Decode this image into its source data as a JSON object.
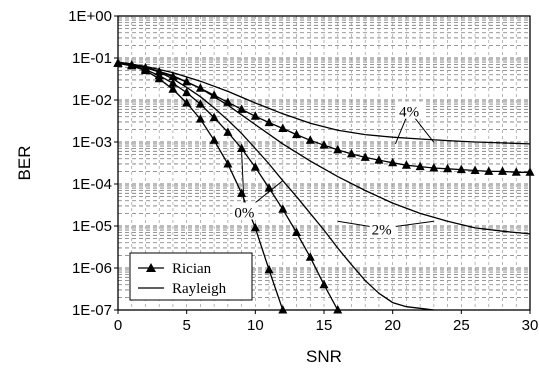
{
  "chart_data": {
    "type": "line",
    "title": "",
    "xlabel": "SNR",
    "ylabel": "BER",
    "xlim": [
      0,
      30
    ],
    "ylim": [
      1e-07,
      1
    ],
    "yscale": "log",
    "grid": true,
    "grid_style": "dashed",
    "legend_position": "bottom-left",
    "xticks": [
      "0",
      "5",
      "10",
      "15",
      "20",
      "25",
      "30"
    ],
    "xtick_values": [
      0,
      5,
      10,
      15,
      20,
      25,
      30
    ],
    "yticks": [
      "1E-07",
      "1E-06",
      "1E-05",
      "1E-04",
      "1E-03",
      "1E-02",
      "1E-01",
      "1E+00"
    ],
    "ytick_values": [
      1e-07,
      1e-06,
      1e-05,
      0.0001,
      0.001,
      0.01,
      0.1,
      1
    ],
    "legend": {
      "rician_label": "Rician",
      "rayleigh_label": "Rayleigh"
    },
    "series": [
      {
        "name": "Rician",
        "group": "rician",
        "marker": "triangle",
        "x": [
          0,
          1,
          2,
          3,
          4,
          5,
          6,
          7,
          8,
          9,
          10,
          11,
          12
        ],
        "y": [
          0.075,
          0.065,
          0.05,
          0.032,
          0.018,
          0.0085,
          0.0035,
          0.0011,
          0.0003,
          6e-05,
          9e-06,
          9e-07,
          1e-07
        ]
      },
      {
        "name": "Rician",
        "group": "rician",
        "marker": "triangle",
        "x": [
          0,
          1,
          2,
          3,
          4,
          5,
          6,
          7,
          8,
          9,
          10,
          11,
          12,
          13,
          14,
          15,
          16
        ],
        "y": [
          0.075,
          0.066,
          0.053,
          0.038,
          0.025,
          0.015,
          0.008,
          0.0038,
          0.0017,
          0.0007,
          0.00025,
          8e-05,
          2.5e-05,
          7e-06,
          1.8e-06,
          4e-07,
          1e-07
        ]
      },
      {
        "name": "Rician",
        "group": "rician",
        "marker": "triangle",
        "x": [
          0,
          1,
          2,
          3,
          4,
          5,
          6,
          7,
          8,
          9,
          10,
          11,
          12,
          13,
          14,
          15,
          16,
          17,
          18,
          19,
          20,
          21,
          22,
          23,
          24,
          25,
          26,
          27,
          28,
          29,
          30
        ],
        "y": [
          0.075,
          0.068,
          0.058,
          0.047,
          0.036,
          0.027,
          0.019,
          0.013,
          0.0088,
          0.006,
          0.0041,
          0.0029,
          0.0021,
          0.0015,
          0.0011,
          0.00084,
          0.00065,
          0.00052,
          0.00043,
          0.00037,
          0.00032,
          0.00028,
          0.00026,
          0.00024,
          0.00023,
          0.00022,
          0.00021,
          0.0002,
          0.0002,
          0.00019,
          0.00019
        ]
      },
      {
        "name": "Rayleigh",
        "group": "rayleigh",
        "marker": "none",
        "x": [
          0,
          1,
          2,
          3,
          4,
          5,
          6,
          7,
          8,
          9,
          10,
          11,
          12,
          13,
          14,
          15,
          16,
          17,
          18,
          19,
          20,
          21,
          22,
          23
        ],
        "y": [
          0.08,
          0.072,
          0.06,
          0.046,
          0.032,
          0.02,
          0.012,
          0.0065,
          0.0033,
          0.0016,
          0.0007,
          0.0003,
          0.00012,
          5e-05,
          2e-05,
          8e-06,
          3e-06,
          1.2e-06,
          5e-07,
          2.5e-07,
          1.5e-07,
          1.2e-07,
          1.1e-07,
          1e-07
        ]
      },
      {
        "name": "Rayleigh",
        "group": "rayleigh",
        "marker": "none",
        "x": [
          0,
          2,
          4,
          6,
          8,
          10,
          12,
          14,
          16,
          18,
          20,
          22,
          24,
          26,
          28,
          30
        ],
        "y": [
          0.08,
          0.06,
          0.038,
          0.019,
          0.0075,
          0.0026,
          0.0009,
          0.00035,
          0.00015,
          7e-05,
          3.5e-05,
          2e-05,
          1.3e-05,
          9e-06,
          7.5e-06,
          6.5e-06
        ]
      },
      {
        "name": "Rayleigh",
        "group": "rayleigh",
        "marker": "none",
        "x": [
          0,
          2,
          4,
          6,
          8,
          10,
          12,
          14,
          16,
          18,
          20,
          22,
          24,
          26,
          28,
          30
        ],
        "y": [
          0.08,
          0.063,
          0.045,
          0.028,
          0.016,
          0.0085,
          0.0047,
          0.0028,
          0.0019,
          0.0015,
          0.0013,
          0.00118,
          0.00108,
          0.001,
          0.00095,
          0.0009
        ]
      }
    ],
    "annotations": [
      {
        "text": "0%",
        "label_x": 9.2,
        "label_y": 1.6e-05,
        "leader_targets": [
          [
            12,
            0.00012
          ],
          [
            9,
            0.0006
          ]
        ]
      },
      {
        "text": "2%",
        "label_x": 19.2,
        "label_y": 6.3e-06,
        "leader_targets": [
          [
            16,
            1.3e-05
          ],
          [
            23,
            1.3e-05
          ]
        ]
      },
      {
        "text": "4%",
        "label_x": 21.2,
        "label_y": 0.004,
        "leader_targets": [
          [
            20.2,
            0.0009
          ],
          [
            23,
            0.00098
          ]
        ]
      }
    ]
  }
}
